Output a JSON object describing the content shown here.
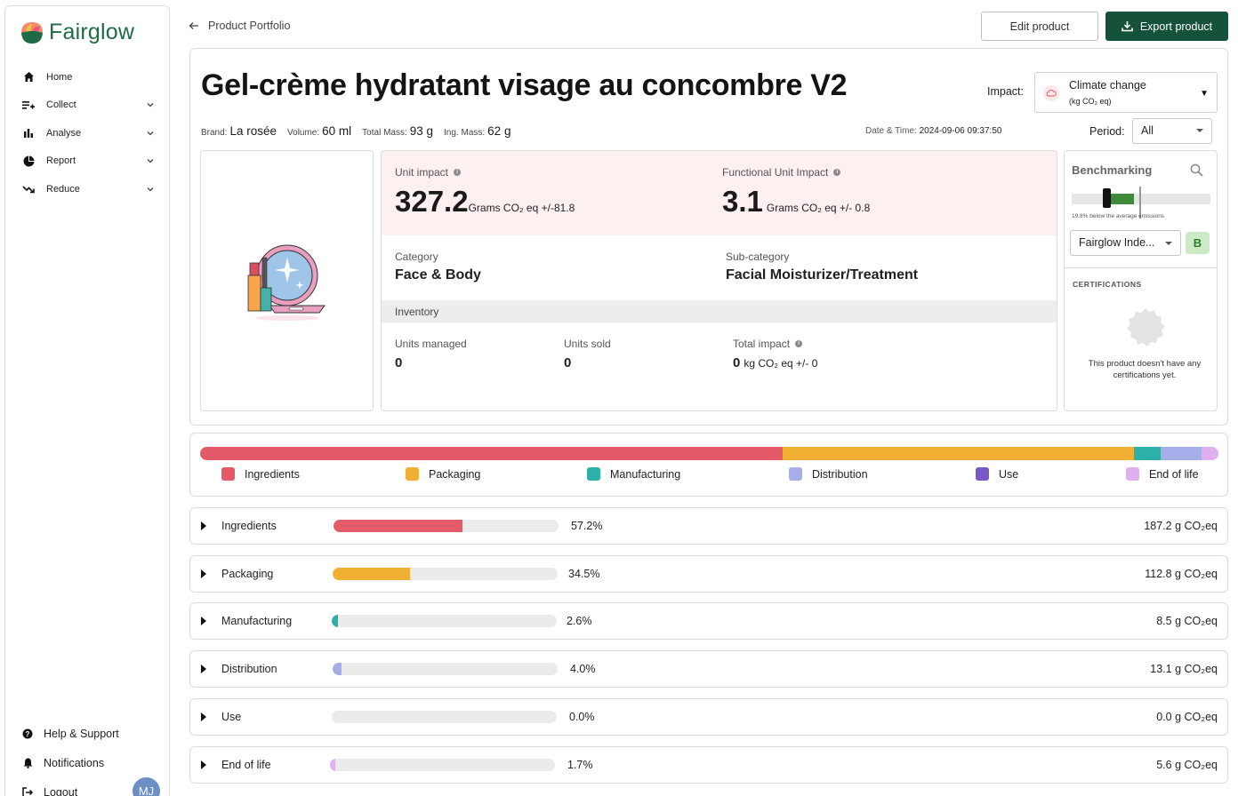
{
  "app": {
    "name": "Fairglow"
  },
  "sidebar": {
    "items": [
      {
        "label": "Home",
        "icon": "home-icon"
      },
      {
        "label": "Collect",
        "icon": "collect-icon"
      },
      {
        "label": "Analyse",
        "icon": "analyse-icon"
      },
      {
        "label": "Report",
        "icon": "report-icon"
      },
      {
        "label": "Reduce",
        "icon": "reduce-icon"
      }
    ],
    "bottom": [
      {
        "label": "Help & Support",
        "icon": "help-icon"
      },
      {
        "label": "Notifications",
        "icon": "bell-icon"
      },
      {
        "label": "Logout",
        "icon": "logout-icon"
      }
    ],
    "avatar": "MJ"
  },
  "header": {
    "breadcrumb": "Product Portfolio",
    "edit_label": "Edit product",
    "export_label": "Export product"
  },
  "product": {
    "title": "Gel-crème hydratant visage au concombre V2",
    "brand_label": "Brand:",
    "brand": "La rosée",
    "volume_label": "Volume:",
    "volume": "60 ml",
    "total_mass_label": "Total Mass:",
    "total_mass": "93 g",
    "ing_mass_label": "Ing. Mass:",
    "ing_mass": "62 g",
    "datetime_label": "Date & Time:",
    "datetime": "2024-09-06 09:37:50"
  },
  "impact": {
    "label": "Impact:",
    "selected": "Climate change",
    "unit": "(kg CO₂ eq)",
    "period_label": "Period:",
    "period": "All"
  },
  "metrics": {
    "unit_impact_label": "Unit impact",
    "unit_impact_value": "327.2",
    "unit_impact_unit": "Grams CO₂ eq +/-81.8",
    "functional_label": "Functional Unit Impact",
    "functional_value": "3.1",
    "functional_unit": "Grams CO₂ eq +/- 0.8",
    "category_label": "Category",
    "category": "Face & Body",
    "subcategory_label": "Sub-category",
    "subcategory": "Facial Moisturizer/Treatment",
    "inventory_label": "Inventory",
    "units_managed_label": "Units managed",
    "units_managed": "0",
    "units_sold_label": "Units sold",
    "units_sold": "0",
    "total_impact_label": "Total impact",
    "total_impact_value": "0",
    "total_impact_unit": "kg CO₂ eq +/- 0"
  },
  "benchmarking": {
    "title": "Benchmarking",
    "note": "19.8% below the average emissions",
    "index": "Fairglow Inde...",
    "grade": "B",
    "cert_title": "CERTIFICATIONS",
    "cert_text": "This product doesn't have any certifications yet."
  },
  "colors": {
    "ingredients": "#e45a68",
    "packaging": "#f1af33",
    "manufacturing": "#2db0a8",
    "distribution": "#a5aee8",
    "use": "#7a56c7",
    "end_of_life": "#e0b0ee",
    "brand_green": "#16523a"
  },
  "breakdown": [
    {
      "key": "ingredients",
      "label": "Ingredients",
      "percent": 57.2,
      "pct_text": "57.2%",
      "value": "187.2 g CO₂eq"
    },
    {
      "key": "packaging",
      "label": "Packaging",
      "percent": 34.5,
      "pct_text": "34.5%",
      "value": "112.8 g CO₂eq"
    },
    {
      "key": "manufacturing",
      "label": "Manufacturing",
      "percent": 2.6,
      "pct_text": "2.6%",
      "value": "8.5 g CO₂eq"
    },
    {
      "key": "distribution",
      "label": "Distribution",
      "percent": 4.0,
      "pct_text": "4.0%",
      "value": "13.1 g CO₂eq"
    },
    {
      "key": "use",
      "label": "Use",
      "percent": 0.0,
      "pct_text": "0.0%",
      "value": "0.0 g CO₂eq"
    },
    {
      "key": "end_of_life",
      "label": "End of life",
      "percent": 1.7,
      "pct_text": "1.7%",
      "value": "5.6 g CO₂eq"
    }
  ]
}
